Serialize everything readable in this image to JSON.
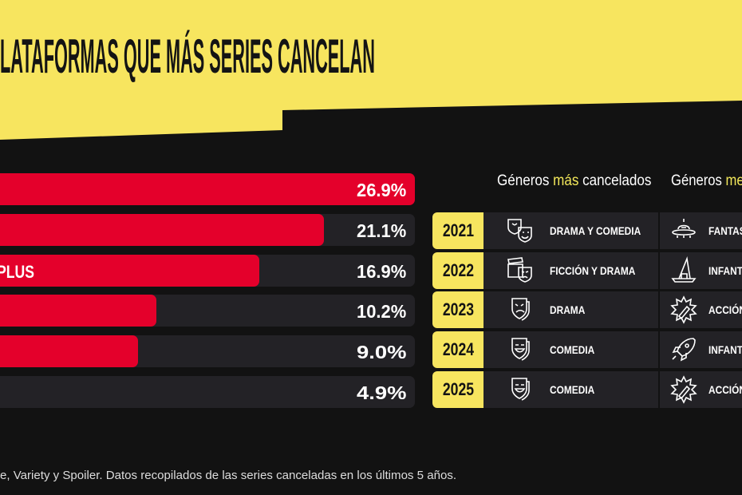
{
  "title": "LATAFORMAS QUE MÁS SERIES CANCELAN",
  "colors": {
    "yellow": "#f7e55f",
    "red": "#e4002b",
    "background": "#121212",
    "track": "#232226"
  },
  "chart_data": {
    "type": "bar",
    "orientation": "horizontal",
    "categories": [
      "",
      "",
      "PLUS",
      "",
      "",
      ""
    ],
    "values": [
      26.9,
      21.1,
      16.9,
      10.2,
      9.0,
      4.9
    ],
    "value_labels": [
      "26.9%",
      "21.1%",
      "16.9%",
      "10.2%",
      "9.0%",
      "4.9%"
    ],
    "unit": "%",
    "xlim": [
      0,
      26.9
    ]
  },
  "table": {
    "header_most": {
      "pre": "Géneros ",
      "hl": "más",
      "post": " cancelados"
    },
    "header_least": {
      "pre": "Géneros ",
      "hl": "me"
    },
    "rows": [
      {
        "year": "2021",
        "most": "DRAMA Y COMEDIA",
        "most_icon": "drama-comedy-masks-icon",
        "least": "FANTAS",
        "least_icon": "ufo-icon"
      },
      {
        "year": "2022",
        "most": "FICCIÓN Y DRAMA",
        "most_icon": "clapperboard-mask-icon",
        "least": "INFANT",
        "least_icon": "wizard-hat-icon"
      },
      {
        "year": "2023",
        "most": "DRAMA",
        "most_icon": "drama-mask-icon",
        "least": "ACCIÓN",
        "least_icon": "explosion-icon"
      },
      {
        "year": "2024",
        "most": "COMEDIA",
        "most_icon": "comedy-mask-icon",
        "least": "INFANT",
        "least_icon": "rocket-icon"
      },
      {
        "year": "2025",
        "most": "COMEDIA",
        "most_icon": "comedy-mask-icon",
        "least": "ACCIÓN",
        "least_icon": "explosion-icon"
      }
    ]
  },
  "footer": "e, Variety y Spoiler. Datos recopilados de las series canceladas en los últimos 5 años."
}
